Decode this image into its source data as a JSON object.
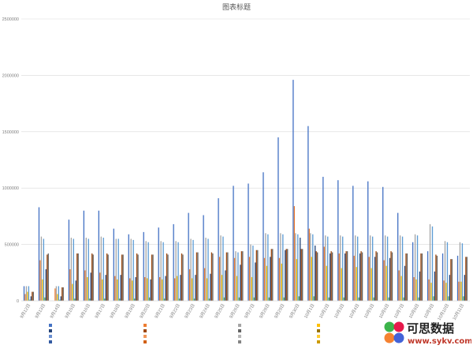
{
  "chart_data": {
    "type": "bar",
    "title": "图表标题",
    "xlabel": "",
    "ylabel": "",
    "ylim": [
      0,
      2500000
    ],
    "yticks": [
      0,
      500000,
      1000000,
      1500000,
      2000000,
      2500000
    ],
    "grid": true,
    "legend_position": "bottom",
    "categories": [
      "9月12日",
      "9月13日",
      "9月14日",
      "9月15日",
      "9月16日",
      "9月17日",
      "9月18日",
      "9月19日",
      "9月20日",
      "9月21日",
      "9月22日",
      "9月23日",
      "9月24日",
      "9月25日",
      "9月26日",
      "9月27日",
      "9月28日",
      "9月29日",
      "9月30日",
      "10月1日",
      "10月2日",
      "10月3日",
      "10月4日",
      "10月5日",
      "10月6日",
      "10月7日",
      "10月8日",
      "10月9日",
      "10月10日",
      "10月11日"
    ],
    "series": [
      {
        "color": "#4472c4",
        "values": [
          130000,
          830000,
          0,
          720000,
          800000,
          800000,
          640000,
          590000,
          610000,
          650000,
          680000,
          780000,
          760000,
          910000,
          1020000,
          1040000,
          1140000,
          1450000,
          1960000,
          1550000,
          1100000,
          1070000,
          1020000,
          1060000,
          1010000,
          780000,
          520000,
          440000,
          420000,
          400000
        ]
      },
      {
        "color": "#ed7d31",
        "values": [
          60000,
          360000,
          110000,
          280000,
          270000,
          250000,
          220000,
          200000,
          210000,
          210000,
          200000,
          280000,
          290000,
          390000,
          380000,
          390000,
          380000,
          380000,
          840000,
          640000,
          480000,
          420000,
          400000,
          390000,
          360000,
          270000,
          210000,
          190000,
          180000,
          170000
        ]
      },
      {
        "color": "#a5a5a5",
        "values": [
          130000,
          570000,
          130000,
          560000,
          560000,
          570000,
          550000,
          550000,
          530000,
          530000,
          530000,
          550000,
          560000,
          580000,
          440000,
          500000,
          600000,
          600000,
          600000,
          600000,
          580000,
          580000,
          580000,
          580000,
          580000,
          580000,
          590000,
          680000,
          530000,
          520000
        ]
      },
      {
        "color": "#ffc000",
        "values": [
          80000,
          190000,
          60000,
          150000,
          210000,
          190000,
          190000,
          180000,
          200000,
          190000,
          220000,
          200000,
          200000,
          230000,
          220000,
          210000,
          310000,
          330000,
          370000,
          390000,
          310000,
          290000,
          300000,
          290000,
          310000,
          220000,
          190000,
          160000,
          160000,
          170000
        ]
      },
      {
        "color": "#5b9bd5",
        "values": [
          130000,
          550000,
          130000,
          550000,
          550000,
          560000,
          550000,
          540000,
          520000,
          520000,
          520000,
          540000,
          550000,
          570000,
          430000,
          490000,
          590000,
          590000,
          590000,
          590000,
          570000,
          570000,
          570000,
          570000,
          570000,
          570000,
          580000,
          660000,
          520000,
          510000
        ]
      },
      {
        "color": "#70ad47",
        "values": [
          10000,
          30000,
          10000,
          20000,
          20000,
          20000,
          20000,
          20000,
          30000,
          20000,
          20000,
          20000,
          20000,
          30000,
          30000,
          30000,
          30000,
          30000,
          40000,
          40000,
          30000,
          30000,
          30000,
          30000,
          30000,
          30000,
          30000,
          40000,
          40000,
          40000
        ]
      },
      {
        "color": "#264478",
        "values": [
          40000,
          280000,
          40000,
          180000,
          250000,
          230000,
          230000,
          210000,
          190000,
          220000,
          230000,
          230000,
          240000,
          270000,
          320000,
          340000,
          390000,
          450000,
          560000,
          490000,
          420000,
          420000,
          420000,
          390000,
          380000,
          310000,
          260000,
          260000,
          230000,
          230000
        ]
      },
      {
        "color": "#9e480e",
        "values": [
          80000,
          410000,
          120000,
          420000,
          420000,
          420000,
          410000,
          420000,
          410000,
          420000,
          420000,
          430000,
          430000,
          430000,
          440000,
          450000,
          460000,
          460000,
          460000,
          440000,
          440000,
          440000,
          440000,
          440000,
          440000,
          420000,
          420000,
          410000,
          370000,
          390000
        ]
      },
      {
        "color": "#636363",
        "values": [
          80000,
          420000,
          120000,
          420000,
          410000,
          410000,
          410000,
          410000,
          410000,
          410000,
          410000,
          430000,
          420000,
          430000,
          440000,
          450000,
          460000,
          460000,
          460000,
          430000,
          430000,
          440000,
          430000,
          430000,
          430000,
          420000,
          420000,
          400000,
          370000,
          390000
        ]
      }
    ],
    "legend": [
      {
        "color": "#4472c4"
      },
      {
        "color": "#ed7d31"
      },
      {
        "color": "#a5a5a5"
      },
      {
        "color": "#ffc000"
      },
      {
        "color": "#5b9bd5"
      },
      {
        "color": "#70ad47"
      },
      {
        "color": "#264478"
      },
      {
        "color": "#9e480e"
      },
      {
        "color": "#636363"
      },
      {
        "color": "#997300"
      },
      {
        "color": "#255e91"
      },
      {
        "color": "#43682b"
      },
      {
        "color": "#698ed0"
      },
      {
        "color": "#f1975a"
      },
      {
        "color": "#b7b7b7"
      },
      {
        "color": "#ffcd33"
      },
      {
        "color": "#7cafdd"
      },
      {
        "color": "#8cc168"
      },
      {
        "color": "#335aa1"
      },
      {
        "color": "#d26012"
      },
      {
        "color": "#848484"
      },
      {
        "color": "#cc9a00"
      },
      {
        "color": "#327dc2"
      },
      {
        "color": "#5a8a39"
      }
    ]
  },
  "watermark": {
    "title": "可思数据",
    "url": "www.sykv.com"
  }
}
